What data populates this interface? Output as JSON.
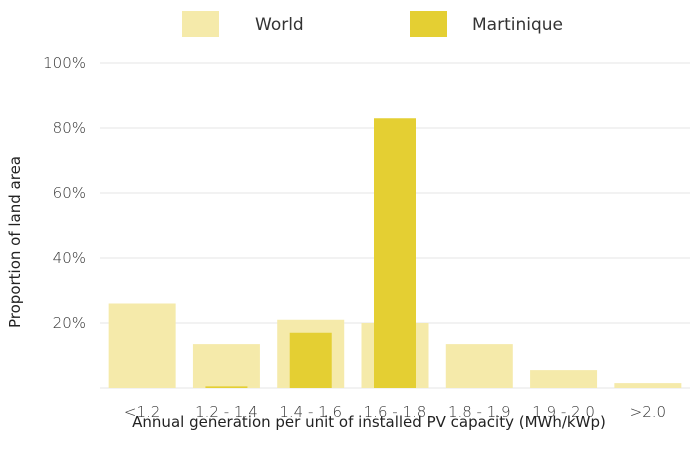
{
  "chart_data": {
    "type": "bar",
    "categories": [
      "<1.2",
      "1.2 - 1.4",
      "1.4 - 1.6",
      "1.6 - 1.8",
      "1.8 - 1.9",
      "1.9 - 2.0",
      ">2.0"
    ],
    "series": [
      {
        "name": "World",
        "values": [
          26,
          13.5,
          21,
          20,
          13.5,
          5.5,
          1.5
        ],
        "color": "#f5eaaa"
      },
      {
        "name": "Martinique",
        "values": [
          0,
          0.5,
          17,
          83,
          0,
          0,
          0
        ],
        "color": "#e4cf33"
      }
    ],
    "xlabel": "Annual generation per unit of installed PV capacity (MWh/kWp)",
    "ylabel": "Proportion of land area",
    "ylim": [
      0,
      100
    ],
    "yticks": [
      20,
      40,
      60,
      80,
      100
    ],
    "ytick_labels": [
      "20%",
      "40%",
      "60%",
      "80%",
      "100%"
    ],
    "grid": true,
    "legend_position": "top"
  }
}
